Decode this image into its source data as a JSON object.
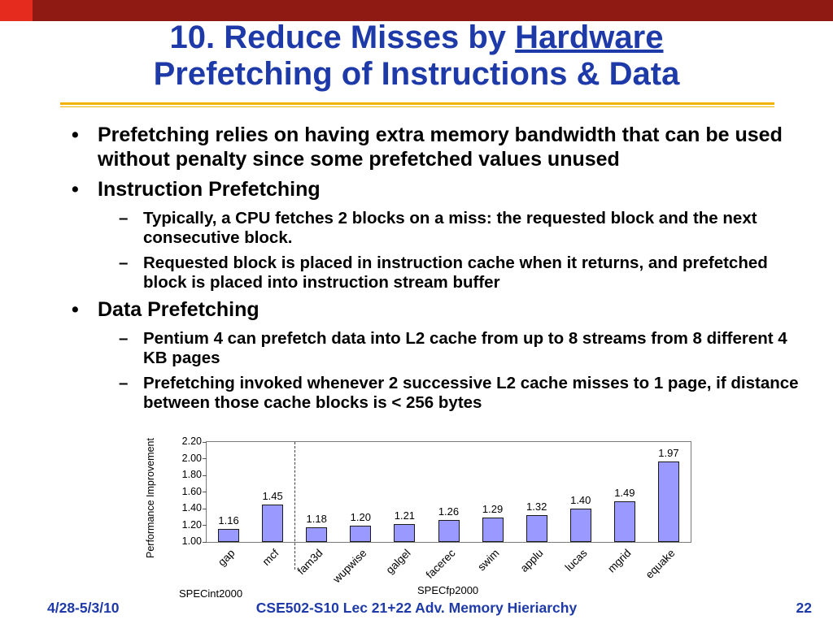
{
  "slide": {
    "title": {
      "prefix": "10. Reduce Misses by ",
      "underlined": "Hardware",
      "line2": "Prefetching of Instructions & Data"
    },
    "bullets": [
      {
        "marker": "•",
        "text": "Prefetching relies on having extra memory bandwidth that can be used without penalty since some prefetched values unused"
      },
      {
        "marker": "•",
        "text": "Instruction Prefetching"
      },
      {
        "marker": "–",
        "text": "Typically, a CPU fetches 2 blocks on a miss: the requested block and the next consecutive block."
      },
      {
        "marker": "–",
        "text": "Requested block is placed in instruction cache when it returns, and prefetched block is placed into instruction stream buffer"
      },
      {
        "marker": "•",
        "text": "Data Prefetching"
      },
      {
        "marker": "–",
        "text": "Pentium 4 can prefetch data into L2 cache from up to 8 streams from 8 different 4 KB pages"
      },
      {
        "marker": "–",
        "text": "Prefetching invoked whenever 2 successive L2 cache misses to 1 page, if distance between those cache blocks is < 256 bytes"
      }
    ],
    "footer": {
      "date": "4/28-5/3/10",
      "center": "CSE502-S10 Lec 21+22 Adv. Memory Hieriarchy",
      "page": "22"
    }
  },
  "colors": {
    "title_blue": "#1e3aa8",
    "band_maroon": "#8f1a13",
    "corner_red": "#e52b1e",
    "rule_gold": "#f2b200"
  },
  "chart_data": {
    "type": "bar",
    "categories": [
      "gap",
      "mcf",
      "fam3d",
      "wupwise",
      "galgel",
      "facerec",
      "swim",
      "applu",
      "lucas",
      "mgrid",
      "equake"
    ],
    "values": [
      1.16,
      1.45,
      1.18,
      1.2,
      1.21,
      1.26,
      1.29,
      1.32,
      1.4,
      1.49,
      1.97
    ],
    "value_labels": [
      "1.16",
      "1.45",
      "1.18",
      "1.20",
      "1.21",
      "1.26",
      "1.29",
      "1.32",
      "1.40",
      "1.49",
      "1.97"
    ],
    "title": "",
    "xlabel": "",
    "ylabel": "Performance Improvement",
    "ylim": [
      1.0,
      2.2
    ],
    "yticks": [
      "2.20",
      "2.00",
      "1.80",
      "1.60",
      "1.40",
      "1.20",
      "1.00"
    ],
    "group_labels": [
      "SPECint2000",
      "SPECfp2000"
    ],
    "divider_after_index": 1,
    "bar_color": "#9999ff",
    "grid": false,
    "legend": "none"
  }
}
